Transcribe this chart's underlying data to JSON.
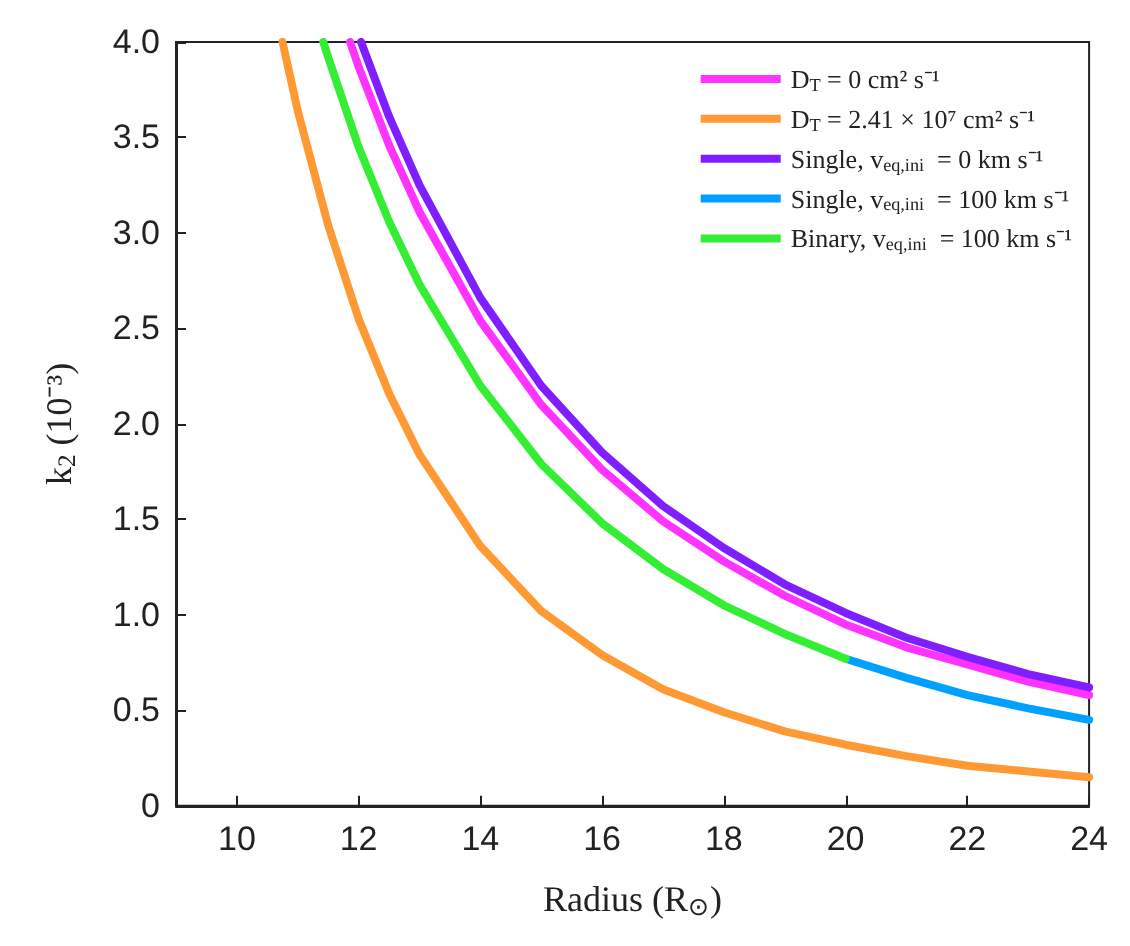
{
  "chart_data": {
    "type": "line",
    "xlabel": "Radius (R$_{⊙}$)",
    "ylabel": "k$_{2}$ (10⁻³)",
    "xlim": [
      9,
      24
    ],
    "xticks": [
      10,
      12,
      14,
      16,
      18,
      20,
      22,
      24
    ],
    "ylim": [
      0,
      4
    ],
    "yticks": [
      0,
      0.5,
      {
        "value": 1,
        "label": "1.0"
      },
      1.5,
      {
        "value": 2,
        "label": "2.0"
      },
      2.5,
      {
        "value": 3,
        "label": "3.0"
      },
      3.5,
      {
        "value": 4,
        "label": "4.0"
      }
    ],
    "grid": false,
    "legend": "top right",
    "marker": "none",
    "line_style": "solid",
    "series": [
      {
        "name": "D$_{T}$ = 0 cm² s⁻¹",
        "color": "#ff33ff",
        "x": [
          11.86,
          12,
          12.5,
          13,
          14,
          15,
          16,
          17,
          18,
          19,
          20,
          21,
          22,
          23,
          24
        ],
        "values": [
          4.0,
          3.87,
          3.46,
          3.11,
          2.54,
          2.1,
          1.76,
          1.49,
          1.28,
          1.1,
          0.95,
          0.83,
          0.74,
          0.65,
          0.58
        ]
      },
      {
        "name": "D$_{T}$ = 2.41 × 10⁷ cm² s⁻¹",
        "color": "#ff9933",
        "x": [
          10.75,
          11,
          11.5,
          12,
          12.5,
          13,
          14,
          15,
          16,
          17,
          18,
          19,
          20,
          21,
          22,
          23,
          24
        ],
        "values": [
          4.0,
          3.64,
          3.04,
          2.55,
          2.16,
          1.84,
          1.36,
          1.02,
          0.79,
          0.61,
          0.49,
          0.39,
          0.32,
          0.26,
          0.21,
          0.18,
          0.15
        ]
      },
      {
        "name": "Single, v$_{eq,ini}$  = 0 km s⁻¹",
        "color": "#7f1fff",
        "x": [
          12.04,
          12.5,
          13,
          14,
          15,
          16,
          17,
          18,
          19,
          20,
          21,
          22,
          23,
          24
        ],
        "values": [
          4.0,
          3.61,
          3.25,
          2.66,
          2.2,
          1.85,
          1.57,
          1.35,
          1.16,
          1.01,
          0.88,
          0.78,
          0.69,
          0.62
        ]
      },
      {
        "name": "Single, v$_{eq,ini}$  = 100 km s⁻¹",
        "color": "#00a0ff",
        "x": [
          20,
          21,
          22,
          23,
          24
        ],
        "values": [
          0.77,
          0.67,
          0.58,
          0.51,
          0.45
        ]
      },
      {
        "name": "Binary, v$_{eq,ini}$  = 100 km s⁻¹",
        "color": "#33ee33",
        "x": [
          11.42,
          11.5,
          12,
          12.5,
          13,
          14,
          15,
          16,
          17,
          18,
          19,
          20
        ],
        "values": [
          4.0,
          3.92,
          3.45,
          3.06,
          2.73,
          2.2,
          1.79,
          1.48,
          1.24,
          1.05,
          0.9,
          0.77
        ]
      }
    ]
  }
}
